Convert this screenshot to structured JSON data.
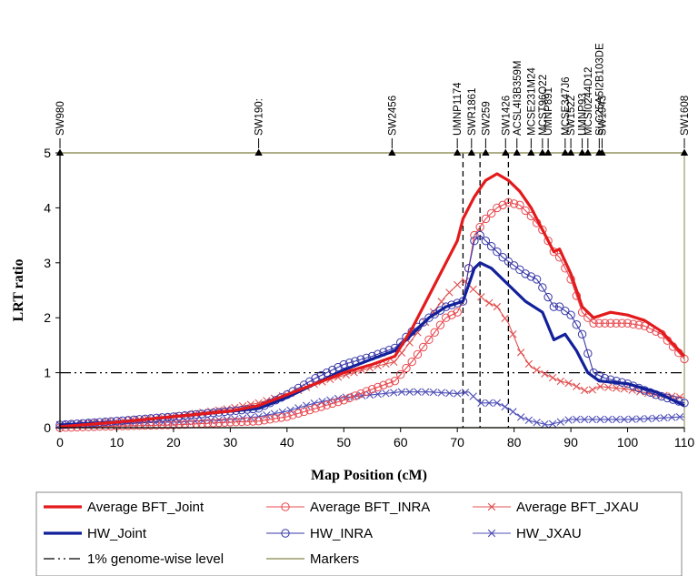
{
  "chart_data": {
    "type": "line",
    "xlabel": "Map Position (cM)",
    "ylabel": "LRT ratio",
    "xlim": [
      0,
      110
    ],
    "ylim": [
      0,
      5
    ],
    "xticks": [
      "0",
      "10",
      "20",
      "30",
      "40",
      "50",
      "60",
      "70",
      "80",
      "90",
      "100",
      "110"
    ],
    "yticks": [
      "0",
      "1",
      "2",
      "3",
      "4",
      "5"
    ],
    "threshold": {
      "name": "1% genome-wise level",
      "value": 1.0
    },
    "dashed_lines": [
      71,
      74,
      79
    ],
    "markers": {
      "name": "Markers",
      "y": 5,
      "items": [
        {
          "label": "SW980",
          "x": 0
        },
        {
          "label": "SW190:",
          "x": 35
        },
        {
          "label": "SW2456",
          "x": 58.5
        },
        {
          "label": "UMNP1174",
          "x": 70
        },
        {
          "label": "SWR1861",
          "x": 72.5
        },
        {
          "label": "SW259",
          "x": 75
        },
        {
          "label": "SW1426",
          "x": 78.5
        },
        {
          "label": "ACSL4I3B359M",
          "x": 80.5
        },
        {
          "label": "MCSE231M24",
          "x": 83
        },
        {
          "label": "MCST96O22",
          "x": 85
        },
        {
          "label": "UMNP891",
          "x": 86
        },
        {
          "label": "MCSE347J6",
          "x": 89
        },
        {
          "label": "SW1522",
          "x": 90
        },
        {
          "label": "UMNP93",
          "x": 92
        },
        {
          "label": "MCSI0244D12",
          "x": 93
        },
        {
          "label": "SLC25A5I2B103DE",
          "x": 95
        },
        {
          "label": "SW1943",
          "x": 95.5
        },
        {
          "label": "SW1608",
          "x": 110
        }
      ]
    },
    "series": [
      {
        "name": "Average BFT_Joint",
        "color": "#e31a1c",
        "marker": "none",
        "points": [
          [
            0,
            0.02
          ],
          [
            10,
            0.1
          ],
          [
            20,
            0.2
          ],
          [
            30,
            0.3
          ],
          [
            35,
            0.4
          ],
          [
            40,
            0.6
          ],
          [
            45,
            0.8
          ],
          [
            50,
            1.0
          ],
          [
            55,
            1.15
          ],
          [
            59,
            1.3
          ],
          [
            62,
            1.8
          ],
          [
            65,
            2.4
          ],
          [
            68,
            3.0
          ],
          [
            70,
            3.4
          ],
          [
            71,
            3.8
          ],
          [
            73,
            4.2
          ],
          [
            75,
            4.5
          ],
          [
            77,
            4.62
          ],
          [
            79,
            4.5
          ],
          [
            81,
            4.3
          ],
          [
            83,
            4.0
          ],
          [
            85,
            3.6
          ],
          [
            87,
            3.2
          ],
          [
            88,
            3.25
          ],
          [
            90,
            2.8
          ],
          [
            92,
            2.2
          ],
          [
            94,
            2.0
          ],
          [
            97,
            2.1
          ],
          [
            100,
            2.05
          ],
          [
            103,
            1.95
          ],
          [
            106,
            1.75
          ],
          [
            110,
            1.3
          ]
        ]
      },
      {
        "name": "Average BFT_INRA",
        "color": "#e8484f",
        "marker": "circle",
        "points": [
          [
            0,
            0.0
          ],
          [
            10,
            0.03
          ],
          [
            20,
            0.05
          ],
          [
            30,
            0.1
          ],
          [
            35,
            0.12
          ],
          [
            40,
            0.2
          ],
          [
            45,
            0.35
          ],
          [
            50,
            0.5
          ],
          [
            55,
            0.7
          ],
          [
            59,
            0.85
          ],
          [
            62,
            1.2
          ],
          [
            65,
            1.6
          ],
          [
            68,
            2.0
          ],
          [
            70,
            2.1
          ],
          [
            71,
            2.3
          ],
          [
            72,
            2.9
          ],
          [
            73,
            3.5
          ],
          [
            75,
            3.8
          ],
          [
            77,
            4.0
          ],
          [
            79,
            4.1
          ],
          [
            81,
            4.05
          ],
          [
            83,
            3.85
          ],
          [
            85,
            3.6
          ],
          [
            87,
            3.2
          ],
          [
            88,
            3.1
          ],
          [
            90,
            2.7
          ],
          [
            92,
            2.1
          ],
          [
            94,
            1.9
          ],
          [
            97,
            1.9
          ],
          [
            100,
            1.9
          ],
          [
            103,
            1.85
          ],
          [
            106,
            1.7
          ],
          [
            110,
            1.25
          ]
        ]
      },
      {
        "name": "Average BFT_JXAU",
        "color": "#e05050",
        "marker": "x",
        "points": [
          [
            0,
            0.05
          ],
          [
            10,
            0.12
          ],
          [
            20,
            0.2
          ],
          [
            30,
            0.35
          ],
          [
            35,
            0.45
          ],
          [
            40,
            0.6
          ],
          [
            45,
            0.8
          ],
          [
            50,
            0.95
          ],
          [
            55,
            1.1
          ],
          [
            59,
            1.2
          ],
          [
            62,
            1.6
          ],
          [
            65,
            2.0
          ],
          [
            68,
            2.4
          ],
          [
            70,
            2.6
          ],
          [
            71,
            2.7
          ],
          [
            73,
            2.5
          ],
          [
            75,
            2.3
          ],
          [
            77,
            2.2
          ],
          [
            79,
            1.9
          ],
          [
            81,
            1.4
          ],
          [
            83,
            1.1
          ],
          [
            85,
            1.0
          ],
          [
            88,
            0.85
          ],
          [
            90,
            0.8
          ],
          [
            92,
            0.7
          ],
          [
            93,
            0.65
          ],
          [
            95,
            0.75
          ],
          [
            100,
            0.7
          ],
          [
            105,
            0.6
          ],
          [
            110,
            0.55
          ]
        ]
      },
      {
        "name": "HW_Joint",
        "color": "#12209a",
        "marker": "none",
        "points": [
          [
            0,
            0.05
          ],
          [
            10,
            0.1
          ],
          [
            20,
            0.2
          ],
          [
            30,
            0.3
          ],
          [
            35,
            0.35
          ],
          [
            40,
            0.55
          ],
          [
            45,
            0.8
          ],
          [
            50,
            1.05
          ],
          [
            55,
            1.25
          ],
          [
            59,
            1.4
          ],
          [
            62,
            1.7
          ],
          [
            65,
            2.0
          ],
          [
            68,
            2.2
          ],
          [
            71,
            2.3
          ],
          [
            72,
            2.6
          ],
          [
            73,
            2.9
          ],
          [
            74,
            3.0
          ],
          [
            76,
            2.9
          ],
          [
            78,
            2.7
          ],
          [
            80,
            2.5
          ],
          [
            82,
            2.3
          ],
          [
            85,
            2.1
          ],
          [
            87,
            1.6
          ],
          [
            89,
            1.7
          ],
          [
            91,
            1.4
          ],
          [
            93,
            1.0
          ],
          [
            95,
            0.85
          ],
          [
            100,
            0.8
          ],
          [
            105,
            0.65
          ],
          [
            110,
            0.4
          ]
        ]
      },
      {
        "name": "HW_INRA",
        "color": "#3838a8",
        "marker": "circle",
        "points": [
          [
            0,
            0.05
          ],
          [
            10,
            0.12
          ],
          [
            20,
            0.2
          ],
          [
            30,
            0.3
          ],
          [
            35,
            0.35
          ],
          [
            40,
            0.6
          ],
          [
            45,
            0.9
          ],
          [
            50,
            1.15
          ],
          [
            55,
            1.3
          ],
          [
            59,
            1.45
          ],
          [
            62,
            1.75
          ],
          [
            65,
            2.0
          ],
          [
            68,
            2.2
          ],
          [
            71,
            2.3
          ],
          [
            72,
            2.9
          ],
          [
            73,
            3.4
          ],
          [
            74,
            3.5
          ],
          [
            76,
            3.3
          ],
          [
            78,
            3.1
          ],
          [
            80,
            2.95
          ],
          [
            82,
            2.8
          ],
          [
            84,
            2.7
          ],
          [
            85,
            2.55
          ],
          [
            87,
            2.2
          ],
          [
            88,
            2.2
          ],
          [
            90,
            2.05
          ],
          [
            92,
            1.7
          ],
          [
            94,
            1.0
          ],
          [
            96,
            0.9
          ],
          [
            100,
            0.8
          ],
          [
            105,
            0.6
          ],
          [
            110,
            0.45
          ]
        ]
      },
      {
        "name": "HW_JXAU",
        "color": "#5050b8",
        "marker": "x",
        "points": [
          [
            0,
            0.05
          ],
          [
            10,
            0.08
          ],
          [
            20,
            0.1
          ],
          [
            30,
            0.15
          ],
          [
            35,
            0.2
          ],
          [
            40,
            0.3
          ],
          [
            45,
            0.45
          ],
          [
            50,
            0.55
          ],
          [
            55,
            0.6
          ],
          [
            60,
            0.65
          ],
          [
            65,
            0.65
          ],
          [
            70,
            0.62
          ],
          [
            72,
            0.65
          ],
          [
            74,
            0.45
          ],
          [
            77,
            0.45
          ],
          [
            79,
            0.35
          ],
          [
            81,
            0.2
          ],
          [
            83,
            0.12
          ],
          [
            86,
            0.05
          ],
          [
            88,
            0.1
          ],
          [
            90,
            0.15
          ],
          [
            95,
            0.15
          ],
          [
            100,
            0.15
          ],
          [
            105,
            0.17
          ],
          [
            110,
            0.2
          ]
        ]
      }
    ],
    "legend": {
      "placement": "bottom",
      "entries": [
        {
          "label": "Average BFT_Joint",
          "key": "s0"
        },
        {
          "label": "Average BFT_INRA",
          "key": "s1"
        },
        {
          "label": "Average BFT_JXAU",
          "key": "s2"
        },
        {
          "label": "HW_Joint",
          "key": "s3"
        },
        {
          "label": "HW_INRA",
          "key": "s4"
        },
        {
          "label": "HW_JXAU",
          "key": "s5"
        },
        {
          "label": "1% genome-wise level",
          "key": "threshold"
        },
        {
          "label": "Markers",
          "key": "markers"
        }
      ]
    }
  }
}
